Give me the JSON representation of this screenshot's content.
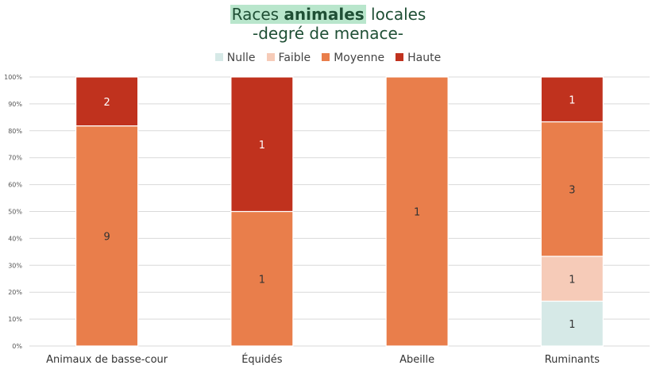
{
  "title": {
    "part1": "Races ",
    "part2": "animales",
    "part3": " locales",
    "subtitle": "-degré de menace-"
  },
  "colors": {
    "Nulle": "#d6e9e7",
    "Faible": "#f6cbb8",
    "Moyenne": "#e97e4b",
    "Haute": "#c0321e",
    "title": "#1f4f35",
    "title_highlight": "#b9e6cc"
  },
  "chart_data": {
    "type": "bar",
    "stacked": "percent",
    "categories": [
      "Animaux de basse-cour",
      "Équidés",
      "Abeille",
      "Ruminants"
    ],
    "series": [
      {
        "name": "Nulle",
        "values": [
          0,
          0,
          0,
          1
        ]
      },
      {
        "name": "Faible",
        "values": [
          0,
          0,
          0,
          1
        ]
      },
      {
        "name": "Moyenne",
        "values": [
          9,
          1,
          1,
          3
        ]
      },
      {
        "name": "Haute",
        "values": [
          2,
          1,
          0,
          1
        ]
      }
    ],
    "y_ticks": [
      "0%",
      "10%",
      "20%",
      "30%",
      "40%",
      "50%",
      "60%",
      "70%",
      "80%",
      "90%",
      "100%"
    ],
    "ylim": [
      0,
      100
    ],
    "grid": true,
    "legend_position": "top-center"
  }
}
